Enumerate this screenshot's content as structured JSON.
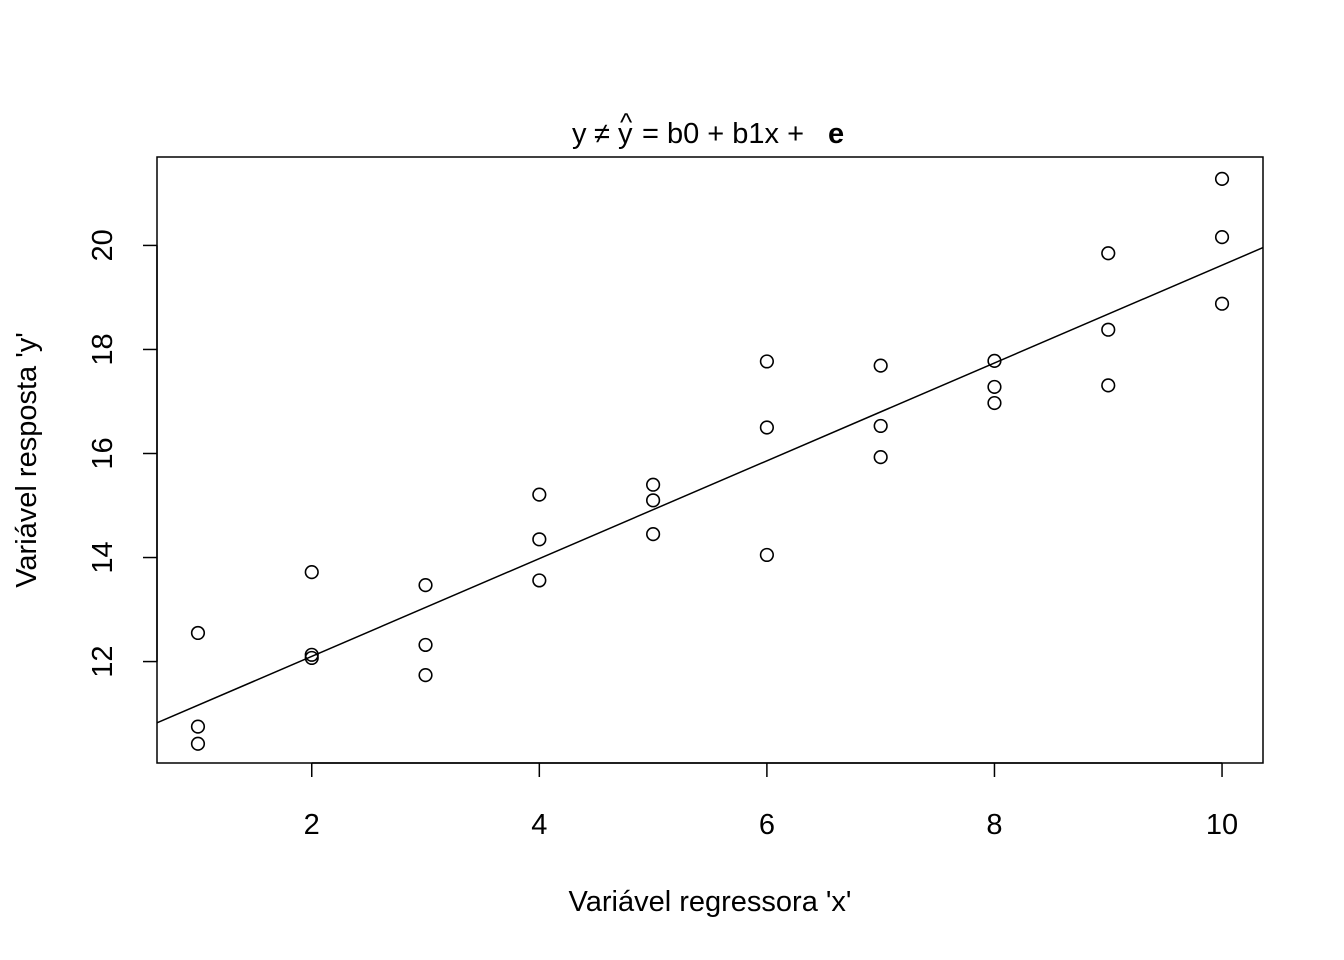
{
  "chart_data": {
    "type": "scatter",
    "title": {
      "lhs": "y",
      "neq": "≠",
      "hat_base": "y",
      "hat": "^",
      "rhs": "= b0 + b1x +",
      "error_term": "e"
    },
    "xlabel": "Variável regressora 'x'",
    "ylabel": "Variável resposta 'y'",
    "xlim": [
      0.64,
      10.36
    ],
    "ylim": [
      10.05,
      21.7
    ],
    "x_ticks": [
      2,
      4,
      6,
      8,
      10
    ],
    "y_ticks": [
      12,
      14,
      16,
      18,
      20
    ],
    "x_tick_labels": [
      "2",
      "4",
      "6",
      "8",
      "10"
    ],
    "y_tick_labels": [
      "12",
      "14",
      "16",
      "18",
      "20"
    ],
    "grid": false,
    "points": [
      {
        "x": 1,
        "y": 12.55
      },
      {
        "x": 1,
        "y": 10.75
      },
      {
        "x": 1,
        "y": 10.42
      },
      {
        "x": 2,
        "y": 13.72
      },
      {
        "x": 2,
        "y": 12.13
      },
      {
        "x": 2,
        "y": 12.07
      },
      {
        "x": 3,
        "y": 13.47
      },
      {
        "x": 3,
        "y": 12.32
      },
      {
        "x": 3,
        "y": 11.74
      },
      {
        "x": 4,
        "y": 15.21
      },
      {
        "x": 4,
        "y": 14.35
      },
      {
        "x": 4,
        "y": 13.56
      },
      {
        "x": 5,
        "y": 15.4
      },
      {
        "x": 5,
        "y": 15.1
      },
      {
        "x": 5,
        "y": 14.45
      },
      {
        "x": 6,
        "y": 17.77
      },
      {
        "x": 6,
        "y": 16.5
      },
      {
        "x": 6,
        "y": 14.05
      },
      {
        "x": 7,
        "y": 17.69
      },
      {
        "x": 7,
        "y": 16.53
      },
      {
        "x": 7,
        "y": 15.93
      },
      {
        "x": 8,
        "y": 17.78
      },
      {
        "x": 8,
        "y": 17.28
      },
      {
        "x": 8,
        "y": 16.97
      },
      {
        "x": 9,
        "y": 19.85
      },
      {
        "x": 9,
        "y": 18.38
      },
      {
        "x": 9,
        "y": 17.31
      },
      {
        "x": 10,
        "y": 21.28
      },
      {
        "x": 10,
        "y": 20.16
      },
      {
        "x": 10,
        "y": 18.88
      }
    ],
    "regression_line": {
      "intercept": 10.22,
      "slope": 0.94
    },
    "colors": {
      "points": "#000000",
      "line": "#000000",
      "axes": "#000000",
      "background": "#ffffff"
    }
  }
}
